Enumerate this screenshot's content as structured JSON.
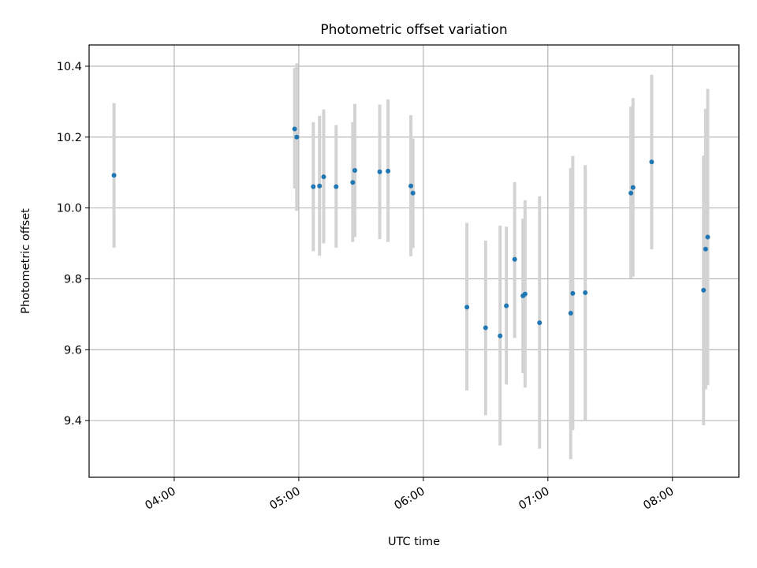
{
  "chart_data": {
    "type": "scatter",
    "title": "Photometric offset variation",
    "xlabel": "UTC time",
    "ylabel": "Photometric offset",
    "x_unit": "UTC hh:mm",
    "xlim": [
      "03:19",
      "08:32"
    ],
    "ylim": [
      9.24,
      10.46
    ],
    "xticks": [
      "04:00",
      "05:00",
      "06:00",
      "07:00",
      "08:00"
    ],
    "yticks": [
      "9.4",
      "9.6",
      "9.8",
      "10.0",
      "10.2",
      "10.4"
    ],
    "grid": true,
    "marker_color": "#1f77b4",
    "errorbar_color": "#d3d3d3",
    "points": [
      {
        "x": "03:31",
        "y": 10.092,
        "ylow": 9.888,
        "yhigh": 10.296
      },
      {
        "x": "04:58",
        "y": 10.223,
        "ylow": 10.055,
        "yhigh": 10.395
      },
      {
        "x": "04:59",
        "y": 10.2,
        "ylow": 9.992,
        "yhigh": 10.408
      },
      {
        "x": "05:07",
        "y": 10.06,
        "ylow": 9.878,
        "yhigh": 10.242
      },
      {
        "x": "05:10",
        "y": 10.062,
        "ylow": 9.865,
        "yhigh": 10.26
      },
      {
        "x": "05:12",
        "y": 10.088,
        "ylow": 9.9,
        "yhigh": 10.278
      },
      {
        "x": "05:18",
        "y": 10.06,
        "ylow": 9.888,
        "yhigh": 10.234
      },
      {
        "x": "05:26",
        "y": 10.072,
        "ylow": 9.904,
        "yhigh": 10.242
      },
      {
        "x": "05:27",
        "y": 10.106,
        "ylow": 9.918,
        "yhigh": 10.294
      },
      {
        "x": "05:39",
        "y": 10.102,
        "ylow": 9.912,
        "yhigh": 10.292
      },
      {
        "x": "05:43",
        "y": 10.104,
        "ylow": 9.904,
        "yhigh": 10.306
      },
      {
        "x": "05:54",
        "y": 10.062,
        "ylow": 9.864,
        "yhigh": 10.262
      },
      {
        "x": "05:55",
        "y": 10.042,
        "ylow": 9.887,
        "yhigh": 10.196
      },
      {
        "x": "06:21",
        "y": 9.72,
        "ylow": 9.485,
        "yhigh": 9.958
      },
      {
        "x": "06:30",
        "y": 9.662,
        "ylow": 9.415,
        "yhigh": 9.908
      },
      {
        "x": "06:37",
        "y": 9.639,
        "ylow": 9.33,
        "yhigh": 9.95
      },
      {
        "x": "06:40",
        "y": 9.724,
        "ylow": 9.502,
        "yhigh": 9.947
      },
      {
        "x": "06:44",
        "y": 9.855,
        "ylow": 9.633,
        "yhigh": 10.073
      },
      {
        "x": "06:48",
        "y": 9.752,
        "ylow": 9.534,
        "yhigh": 9.97
      },
      {
        "x": "06:49",
        "y": 9.757,
        "ylow": 9.493,
        "yhigh": 10.022
      },
      {
        "x": "06:56",
        "y": 9.676,
        "ylow": 9.321,
        "yhigh": 10.033
      },
      {
        "x": "07:11",
        "y": 9.703,
        "ylow": 9.291,
        "yhigh": 10.113
      },
      {
        "x": "07:12",
        "y": 9.759,
        "ylow": 9.373,
        "yhigh": 10.147
      },
      {
        "x": "07:18",
        "y": 9.761,
        "ylow": 9.401,
        "yhigh": 10.121
      },
      {
        "x": "07:40",
        "y": 10.042,
        "ylow": 9.802,
        "yhigh": 10.286
      },
      {
        "x": "07:41",
        "y": 10.058,
        "ylow": 9.806,
        "yhigh": 10.31
      },
      {
        "x": "07:50",
        "y": 10.13,
        "ylow": 9.883,
        "yhigh": 10.376
      },
      {
        "x": "08:15",
        "y": 9.768,
        "ylow": 9.387,
        "yhigh": 10.148
      },
      {
        "x": "08:16",
        "y": 9.884,
        "ylow": 9.488,
        "yhigh": 10.28
      },
      {
        "x": "08:17",
        "y": 9.918,
        "ylow": 9.5,
        "yhigh": 10.336
      }
    ]
  }
}
